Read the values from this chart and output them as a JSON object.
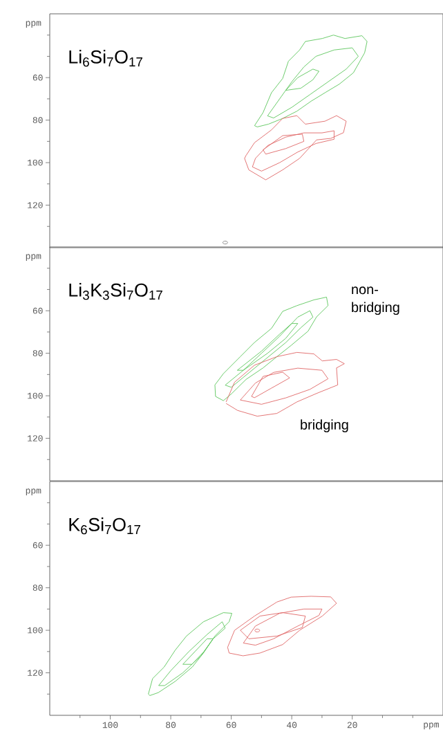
{
  "chart_data": [
    {
      "type": "line",
      "title": "Li$_{6}$Si$_{7}$O$_{17}$",
      "ylabel": "ppm",
      "xlim": [
        120,
        -10
      ],
      "ylim": [
        140,
        30
      ],
      "tick_labels": "y",
      "yticks": [
        60,
        80,
        100,
        120
      ],
      "series": [
        {
          "color": "#5cc65c",
          "x": [
            52.3,
            49.5,
            46.7,
            43.0,
            41.1,
            37.4,
            35.5,
            29.9,
            26.2,
            22.4,
            16.8,
            15.1
          ],
          "values": [
            82.6,
            76.5,
            67.1,
            60.4,
            52.3,
            47.0,
            43.0,
            41.6,
            40.0,
            41.6,
            40.3,
            43.0
          ]
        },
        {
          "color": "#5cc65c",
          "x": [
            15.1,
            15.9,
            19.6,
            24.3,
            29.0,
            33.6,
            38.3,
            43.0,
            47.7,
            51.4,
            52.3
          ],
          "values": [
            43.0,
            48.3,
            57.7,
            63.1,
            67.1,
            71.1,
            75.8,
            79.2,
            81.9,
            83.2,
            82.6
          ]
        },
        {
          "color": "#5cc65c",
          "x": [
            48,
            44,
            40,
            36,
            32,
            26,
            20,
            18
          ],
          "values": [
            78,
            70,
            62,
            55,
            50,
            47,
            46,
            50
          ]
        },
        {
          "color": "#5cc65c",
          "x": [
            18,
            22,
            28,
            34,
            40,
            46,
            48
          ],
          "values": [
            50,
            56,
            62,
            68,
            74,
            79,
            78
          ]
        },
        {
          "color": "#5cc65c",
          "x": [
            42,
            38,
            33,
            31
          ],
          "values": [
            66,
            60,
            56,
            57
          ]
        },
        {
          "color": "#5cc65c",
          "x": [
            31,
            33,
            37,
            42
          ],
          "values": [
            57,
            61,
            65,
            66
          ]
        },
        {
          "color": "#e06666",
          "x": [
            55.6,
            55.1,
            52.3,
            46.7,
            43.0,
            38.3,
            35.5,
            29.0,
            25.2,
            22.0
          ],
          "values": [
            98.0,
            96.6,
            90.6,
            84.6,
            79.2,
            77.9,
            81.9,
            80.5,
            77.9,
            80.5
          ]
        },
        {
          "color": "#e06666",
          "x": [
            22.0,
            22.9,
            27.1,
            31.8,
            37.4,
            43.0,
            48.6,
            54.2,
            55.6
          ],
          "values": [
            80.5,
            85.9,
            88.6,
            89.3,
            98.0,
            103.4,
            108.1,
            103.4,
            98.0
          ]
        },
        {
          "color": "#e06666",
          "x": [
            53,
            52,
            48,
            42,
            36,
            30,
            26
          ],
          "values": [
            102,
            98,
            92,
            88,
            86,
            86,
            85
          ]
        },
        {
          "color": "#e06666",
          "x": [
            26,
            26,
            32,
            38,
            44,
            50,
            53
          ],
          "values": [
            85,
            89,
            91,
            95,
            100,
            104,
            102
          ]
        },
        {
          "color": "#e06666",
          "x": [
            49.5,
            43,
            36.5,
            36
          ],
          "values": [
            94,
            87.3,
            86.6,
            90
          ]
        },
        {
          "color": "#e06666",
          "x": [
            36,
            42,
            48.6,
            49.5
          ],
          "values": [
            90,
            93.4,
            96,
            94
          ]
        },
        {
          "type": "scatter",
          "marker": "circle",
          "color": "#808080",
          "x": [
            62
          ],
          "values": [
            137.6
          ]
        }
      ]
    },
    {
      "type": "line",
      "title": "Li$_{3}$K$_{3}$Si$_{7}$O$_{17}$",
      "ylabel": "ppm",
      "xlim": [
        120,
        -10
      ],
      "ylim": [
        140,
        30
      ],
      "tick_labels": "y",
      "yticks": [
        60,
        80,
        100,
        120
      ],
      "annotations": [
        "non-bridging",
        "bridging"
      ],
      "series": [
        {
          "color": "#5cc65c",
          "x": [
            65.4,
            62.6,
            57.0,
            52.3,
            46.7,
            43.0,
            38.3,
            32.7,
            28.5,
            28.0
          ],
          "values": [
            94.9,
            89.6,
            81.6,
            74.9,
            68.3,
            60.3,
            57.6,
            54.9,
            53.6,
            57.6
          ]
        },
        {
          "color": "#5cc65c",
          "x": [
            28.0,
            31.8,
            34.6,
            40.2,
            44.9,
            49.5,
            55.1,
            59.8,
            62.6,
            65.2,
            65.4
          ],
          "values": [
            57.6,
            62.9,
            69.6,
            76.3,
            81.6,
            86.9,
            92.3,
            98.9,
            102.3,
            100.3,
            94.9
          ]
        },
        {
          "color": "#5cc65c",
          "x": [
            62,
            56,
            50,
            44,
            38,
            34,
            33
          ],
          "values": [
            95,
            88,
            80,
            72,
            63,
            60,
            63
          ]
        },
        {
          "color": "#5cc65c",
          "x": [
            33,
            37,
            42,
            48,
            54,
            60,
            62
          ],
          "values": [
            63,
            68,
            75,
            82,
            89,
            96,
            95
          ]
        },
        {
          "color": "#5cc65c",
          "x": [
            58,
            50,
            44,
            40,
            38
          ],
          "values": [
            88,
            79,
            71,
            66,
            66
          ]
        },
        {
          "color": "#5cc65c",
          "x": [
            38,
            42,
            48,
            56,
            58
          ],
          "values": [
            66,
            73,
            80,
            88,
            88
          ]
        },
        {
          "color": "#e06666",
          "x": [
            61.7,
            58.9,
            52.3,
            44.9,
            38.3,
            32.7,
            29.9,
            25.2,
            22.6,
            25.2,
            24.8,
            31.8,
            38.3,
            44.9,
            51.4,
            57.9,
            61.7
          ],
          "values": [
            102.9,
            93.6,
            85.6,
            81.6,
            79.6,
            80.3,
            83.6,
            82.9,
            84.9,
            86.9,
            94.9,
            98.9,
            102.9,
            108.3,
            109.6,
            106.9,
            103.6
          ]
        },
        {
          "color": "#e06666",
          "x": [
            57,
            52,
            46,
            38,
            30,
            28
          ],
          "values": [
            102,
            94,
            89,
            87,
            88,
            92
          ]
        },
        {
          "color": "#e06666",
          "x": [
            28,
            34,
            42,
            50,
            57
          ],
          "values": [
            92,
            97,
            101,
            104,
            102
          ]
        },
        {
          "color": "#e06666",
          "x": [
            53.3,
            49.5,
            43,
            40.7
          ],
          "values": [
            100.3,
            90.9,
            88.9,
            91.6
          ]
        },
        {
          "color": "#e06666",
          "x": [
            40.7,
            46.7,
            52.3,
            53.3
          ],
          "values": [
            91.6,
            96.4,
            100.9,
            100.3
          ]
        }
      ]
    },
    {
      "type": "line",
      "title": "K$_{6}$Si$_{7}$O$_{17}$",
      "xlabel": "ppm",
      "ylabel": "ppm",
      "xlim": [
        120,
        -10
      ],
      "ylim": [
        140,
        30
      ],
      "xticks": [
        20,
        40,
        60,
        80,
        100
      ],
      "yticks": [
        60,
        80,
        100,
        120
      ],
      "series": [
        {
          "color": "#5cc65c",
          "x": [
            87.4,
            86.0,
            82.2,
            78.5,
            74.8,
            69.2,
            62.6,
            59.8
          ],
          "values": [
            130,
            122.7,
            117.3,
            109.3,
            102.7,
            96,
            91.7,
            92
          ]
        },
        {
          "color": "#5cc65c",
          "x": [
            59.8,
            60.7,
            65.4,
            69.2,
            72.9,
            78.5,
            84.1,
            86.9,
            87.4
          ],
          "values": [
            92,
            96,
            102.7,
            110.7,
            117.3,
            124,
            129.3,
            130.7,
            130
          ]
        },
        {
          "color": "#5cc65c",
          "x": [
            84,
            80,
            74,
            68,
            63,
            62
          ],
          "values": [
            126,
            119,
            110,
            102,
            96,
            99
          ]
        },
        {
          "color": "#5cc65c",
          "x": [
            62,
            66,
            70,
            76,
            82,
            84
          ],
          "values": [
            99,
            104,
            112,
            120,
            126,
            126
          ]
        },
        {
          "color": "#5cc65c",
          "x": [
            76,
            72,
            68,
            66
          ],
          "values": [
            116,
            110,
            104,
            104
          ]
        },
        {
          "color": "#5cc65c",
          "x": [
            66,
            69,
            73,
            76
          ],
          "values": [
            104,
            110,
            116,
            116
          ]
        },
        {
          "color": "#e06666",
          "x": [
            61.2,
            58.9,
            52.3,
            44.9,
            40.2,
            33.6,
            27.1,
            25.2
          ],
          "values": [
            108,
            100,
            93.3,
            86.7,
            84.4,
            84,
            84.3,
            87.3
          ]
        },
        {
          "color": "#e06666",
          "x": [
            25.2,
            29.9,
            37.4,
            43.0,
            50.5,
            56.1,
            60.7,
            61.2
          ],
          "values": [
            87.3,
            93.3,
            100,
            106.7,
            110.7,
            112,
            110.7,
            108
          ]
        },
        {
          "color": "#e06666",
          "x": [
            56,
            52,
            44,
            36,
            30
          ],
          "values": [
            106,
            98,
            92,
            90,
            90
          ]
        },
        {
          "color": "#e06666",
          "x": [
            30,
            31,
            38,
            46,
            52,
            56
          ],
          "values": [
            90,
            93,
            98,
            104,
            107,
            106
          ]
        },
        {
          "color": "#e06666",
          "x": [
            57,
            50.5,
            43,
            35.5
          ],
          "values": [
            100,
            93.3,
            91.7,
            93.3
          ]
        },
        {
          "color": "#e06666",
          "x": [
            35.5,
            36.5,
            44.9,
            54.2,
            57
          ],
          "values": [
            93.3,
            98.7,
            102.7,
            104,
            100
          ]
        },
        {
          "type": "scatter",
          "marker": "circle",
          "color": "#e06666",
          "x": [
            51.4
          ],
          "values": [
            100.1
          ]
        }
      ]
    }
  ]
}
